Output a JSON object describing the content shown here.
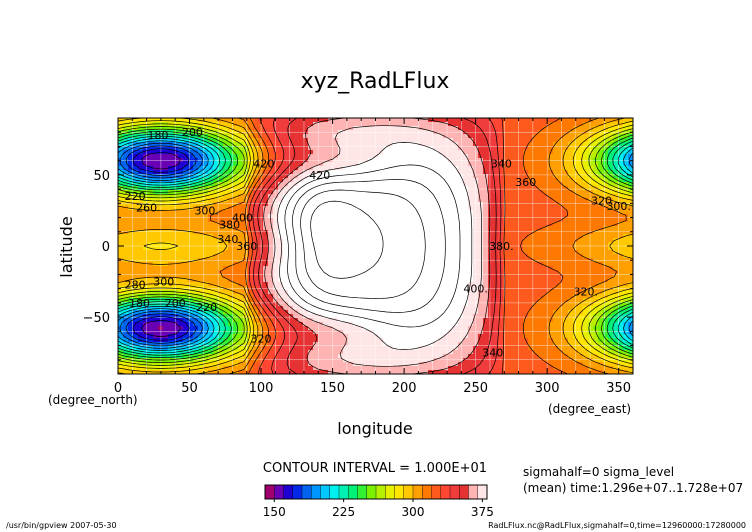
{
  "chart_data": {
    "type": "heatmap",
    "title": "xyz_RadLFlux",
    "xlabel": "longitude",
    "ylabel": "latitude",
    "x_unit_label": "(degree_east)",
    "y_unit_label": "(degree_north)",
    "xlim": [
      0,
      360
    ],
    "ylim": [
      -90,
      90
    ],
    "x_ticks": [
      0,
      50,
      100,
      150,
      200,
      250,
      300,
      350
    ],
    "y_ticks": [
      -50,
      0,
      50
    ],
    "x_tick_labels": [
      "0",
      "50",
      "100",
      "150",
      "200",
      "250",
      "300",
      "350"
    ],
    "y_tick_labels": [
      "−50",
      "0",
      "50"
    ],
    "grid": true,
    "contour_interval_text": "CONTOUR INTERVAL = 1.000E+01",
    "contour_interval": 10,
    "contour_labels": [
      {
        "text": "180",
        "lon": 28,
        "lat": 78
      },
      {
        "text": "200",
        "lon": 52,
        "lat": 80
      },
      {
        "text": "220",
        "lon": 12,
        "lat": 35
      },
      {
        "text": "260",
        "lon": 20,
        "lat": 27
      },
      {
        "text": "300.",
        "lon": 62,
        "lat": 25
      },
      {
        "text": "340.",
        "lon": 78,
        "lat": 5
      },
      {
        "text": "280",
        "lon": 12,
        "lat": -27
      },
      {
        "text": "300",
        "lon": 32,
        "lat": -25
      },
      {
        "text": "180",
        "lon": 15,
        "lat": -40
      },
      {
        "text": "200",
        "lon": 40,
        "lat": -40
      },
      {
        "text": "220",
        "lon": 62,
        "lat": -43
      },
      {
        "text": "320",
        "lon": 100,
        "lat": -65
      },
      {
        "text": "420",
        "lon": 102,
        "lat": 58
      },
      {
        "text": "420",
        "lon": 141,
        "lat": 50
      },
      {
        "text": "380",
        "lon": 78,
        "lat": 15
      },
      {
        "text": "400",
        "lon": 87,
        "lat": 20
      },
      {
        "text": "360",
        "lon": 90,
        "lat": 0
      },
      {
        "text": "340",
        "lon": 268,
        "lat": 58
      },
      {
        "text": "360",
        "lon": 285,
        "lat": 45
      },
      {
        "text": "380.",
        "lon": 268,
        "lat": 0
      },
      {
        "text": "400.",
        "lon": 250,
        "lat": -30
      },
      {
        "text": "340",
        "lon": 262,
        "lat": -75
      },
      {
        "text": "320",
        "lon": 338,
        "lat": 32
      },
      {
        "text": "300.",
        "lon": 350,
        "lat": 28
      },
      {
        "text": "320.",
        "lon": 327,
        "lat": -32
      }
    ],
    "colorbar": {
      "min": 140,
      "max": 430,
      "step": 10,
      "ticks": [
        150,
        225,
        300,
        375
      ],
      "tick_labels": [
        "150",
        "225",
        "300",
        "375"
      ],
      "colors": [
        "#a0006e",
        "#6a00b4",
        "#1e00d2",
        "#0028e6",
        "#0064f0",
        "#0096ff",
        "#00c8ff",
        "#00f0f0",
        "#00f0b4",
        "#00f078",
        "#32f032",
        "#78f000",
        "#b4f000",
        "#e6f000",
        "#ffe600",
        "#ffc800",
        "#ffa000",
        "#ff7800",
        "#ff5a1e",
        "#ff4632",
        "#f03c3c",
        "#e63232",
        "#ffb4b4",
        "#ffe6e6",
        "#ffffff",
        "#ffffff",
        "#ffffff",
        "#ffffff",
        "#ffffff"
      ]
    },
    "side_info": [
      "sigmahalf=0 sigma_level",
      "(mean) time:1.296e+07..1.728e+07"
    ],
    "footer_left": "/usr/bin/gpview   2007-05-30",
    "footer_right": "RadLFlux.nc@RadLFlux,sigmahalf=0,time=12960000:17280000"
  }
}
